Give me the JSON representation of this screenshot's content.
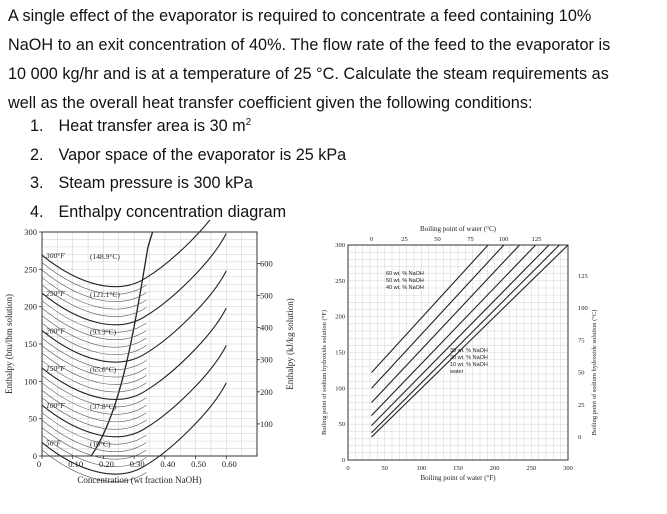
{
  "problem": {
    "line1": "A single effect of the evaporator is required to concentrate a feed containing 10%",
    "line2": "NaOH to an exit concentration of 40%. The flow rate of the feed to the evaporator is",
    "line3": "10 000 kg/hr and is at a temperature of 25 °C. Calculate the steam requirements as",
    "line4": "well as the overall heat transfer coefficient given the following conditions:"
  },
  "conditions": [
    {
      "num": "1.",
      "text": "Heat transfer area is 30 m",
      "sup": "2"
    },
    {
      "num": "2.",
      "text": "Vapor space of the evaporator is 25 kPa",
      "sup": ""
    },
    {
      "num": "3.",
      "text": "Steam pressure is 300 kPa",
      "sup": ""
    },
    {
      "num": "4.",
      "text": "Enthalpy concentration diagram",
      "sup": ""
    }
  ],
  "chart_data": [
    {
      "type": "line",
      "xlabel": "Concentration (wt fraction NaOH)",
      "ylabel": "Enthalpy (btu/lbm solution)",
      "y2label": "Enthalpy (kJ/kg solution)",
      "xlim": [
        0,
        0.7
      ],
      "ylim": [
        0,
        300
      ],
      "xticks": [
        "0",
        "0.10",
        "0.20",
        "0.30",
        "0.40",
        "0.50",
        "0.60"
      ],
      "yticks": [
        "0",
        "50",
        "100",
        "150",
        "200",
        "250",
        "300"
      ],
      "y2ticks": [
        "100",
        "200",
        "300",
        "400",
        "500",
        "600"
      ],
      "isotherms": [
        {
          "label": "300°F",
          "alt": "(148.9°C)",
          "h0": 269
        },
        {
          "label": "250°F",
          "alt": "(121.1°C)",
          "h0": 218
        },
        {
          "label": "200°F",
          "alt": "(93.3°C)",
          "h0": 168
        },
        {
          "label": "150°F",
          "alt": "(65.6°C)",
          "h0": 118
        },
        {
          "label": "100°F",
          "alt": "(37.8°C)",
          "h0": 68
        },
        {
          "label": "50°F",
          "alt": "(10°C)",
          "h0": 18
        }
      ]
    },
    {
      "type": "line",
      "title": "Boiling point of water (°C)",
      "xlabel": "Boiling point of water (°F)",
      "ylabel": "Boiling point of sodium hydroxide solution (°F)",
      "y2label": "Boiling point of sodium hydroxide solution (°C)",
      "xlim": [
        0,
        300
      ],
      "ylim": [
        0,
        300
      ],
      "xticks": [
        "0",
        "50",
        "100",
        "150",
        "200",
        "250",
        "300"
      ],
      "x2ticks": [
        "0",
        "25",
        "50",
        "75",
        "100",
        "125"
      ],
      "yticks": [
        "0",
        "50",
        "100",
        "150",
        "200",
        "250",
        "300"
      ],
      "y2ticks": [
        "0",
        "25",
        "50",
        "75",
        "100",
        "125"
      ],
      "legend_top": [
        "60 wt. % NaOH",
        "50 wt. % NaOH",
        "40 wt. % NaOH"
      ],
      "legend_bottom": [
        "30 wt. % NaOH",
        "20 wt. % NaOH",
        "10 wt. % NaOH",
        "water"
      ],
      "series": [
        {
          "name": "water",
          "values": [
            [
              32,
              32
            ],
            [
              300,
              300
            ]
          ]
        },
        {
          "name": "10 wt. % NaOH",
          "values": [
            [
              32,
              38
            ],
            [
              300,
              312
            ]
          ]
        },
        {
          "name": "20 wt. % NaOH",
          "values": [
            [
              32,
              48
            ],
            [
              300,
              327
            ]
          ]
        },
        {
          "name": "30 wt. % NaOH",
          "values": [
            [
              32,
              62
            ],
            [
              300,
              347
            ]
          ]
        },
        {
          "name": "40 wt. % NaOH",
          "values": [
            [
              32,
              80
            ],
            [
              300,
              372
            ]
          ]
        },
        {
          "name": "50 wt. % NaOH",
          "values": [
            [
              32,
              100
            ],
            [
              300,
              397
            ]
          ]
        },
        {
          "name": "60 wt. % NaOH",
          "values": [
            [
              32,
              122
            ],
            [
              300,
              422
            ]
          ]
        }
      ]
    }
  ]
}
